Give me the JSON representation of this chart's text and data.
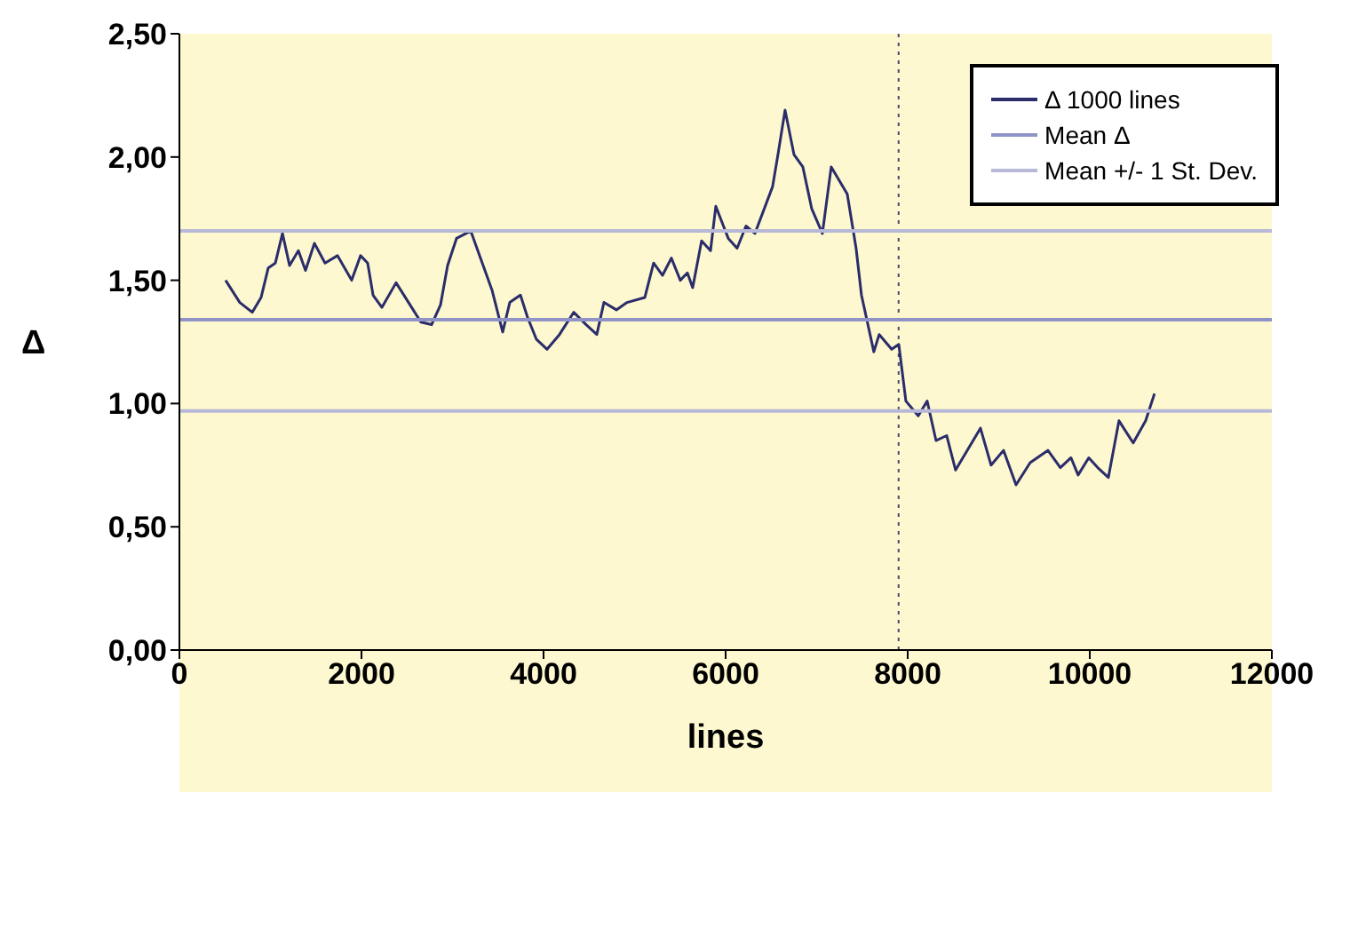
{
  "chart_data": {
    "type": "line",
    "xlabel": "lines",
    "ylabel": "Δ",
    "xlim": [
      0,
      12000
    ],
    "xticks": [
      0,
      2000,
      4000,
      6000,
      8000,
      10000,
      12000
    ],
    "ylim": [
      0,
      2.5
    ],
    "yticks": [
      {
        "value": 0,
        "label": "0,00"
      },
      {
        "value": 0.5,
        "label": "0,50"
      },
      {
        "value": 1,
        "label": "1,00"
      },
      {
        "value": 1.5,
        "label": "1,50"
      },
      {
        "value": 2,
        "label": "2,00"
      },
      {
        "value": 2.5,
        "label": "2,50"
      }
    ],
    "legend": "top right",
    "marker": "none",
    "line_style": "solid",
    "ref_lines": [
      {
        "axis": "x",
        "value": 7900,
        "label": null,
        "color": "#4a4a6a",
        "line_style": "dotted"
      }
    ],
    "series": [
      {
        "name": "Δ 1000 lines",
        "color": "#2b2d6b",
        "x": [
          507,
          663,
          800,
          897,
          976,
          1054,
          1132,
          1210,
          1307,
          1385,
          1483,
          1600,
          1736,
          1892,
          1990,
          2068,
          2127,
          2224,
          2380,
          2517,
          2653,
          2770,
          2868,
          2946,
          3044,
          3200,
          3297,
          3434,
          3551,
          3629,
          3746,
          3824,
          3922,
          4039,
          4175,
          4331,
          4468,
          4585,
          4663,
          4800,
          4917,
          5112,
          5209,
          5307,
          5404,
          5502,
          5580,
          5638,
          5736,
          5834,
          5892,
          6029,
          6126,
          6224,
          6322,
          6516,
          6575,
          6653,
          6751,
          6848,
          6946,
          7063,
          7160,
          7336,
          7433,
          7492,
          7628,
          7687,
          7824,
          7902,
          7980,
          8116,
          8214,
          8311,
          8428,
          8526,
          8799,
          8916,
          9053,
          9190,
          9345,
          9540,
          9677,
          9794,
          9872,
          9989,
          10087,
          10204,
          10321,
          10477,
          10614,
          10711
        ],
        "values": [
          1.5,
          1.41,
          1.37,
          1.43,
          1.55,
          1.57,
          1.69,
          1.56,
          1.62,
          1.54,
          1.65,
          1.57,
          1.6,
          1.5,
          1.6,
          1.57,
          1.44,
          1.39,
          1.49,
          1.41,
          1.33,
          1.32,
          1.4,
          1.56,
          1.67,
          1.7,
          1.6,
          1.46,
          1.29,
          1.41,
          1.44,
          1.35,
          1.26,
          1.22,
          1.28,
          1.37,
          1.32,
          1.28,
          1.41,
          1.38,
          1.41,
          1.43,
          1.57,
          1.52,
          1.59,
          1.5,
          1.53,
          1.47,
          1.66,
          1.62,
          1.8,
          1.67,
          1.63,
          1.72,
          1.69,
          1.88,
          2.01,
          2.19,
          2.01,
          1.96,
          1.79,
          1.69,
          1.96,
          1.85,
          1.63,
          1.44,
          1.21,
          1.28,
          1.22,
          1.24,
          1.01,
          0.95,
          1.01,
          0.85,
          0.87,
          0.73,
          0.9,
          0.75,
          0.81,
          0.67,
          0.76,
          0.81,
          0.74,
          0.78,
          0.71,
          0.78,
          0.74,
          0.7,
          0.93,
          0.84,
          0.93,
          1.04
        ]
      },
      {
        "name": "Mean Δ",
        "color": "#8f93c8",
        "x": [
          0,
          12000
        ],
        "values": [
          1.34,
          1.34
        ]
      },
      {
        "name": "Mean +/- 1 St. Dev.",
        "color": "#b8b8d8",
        "x": [
          0,
          12000
        ],
        "values": [
          1.7,
          1.7
        ]
      },
      {
        "color": "#b8b8d8",
        "x": [
          0,
          12000
        ],
        "values": [
          0.97,
          0.97
        ]
      }
    ]
  }
}
